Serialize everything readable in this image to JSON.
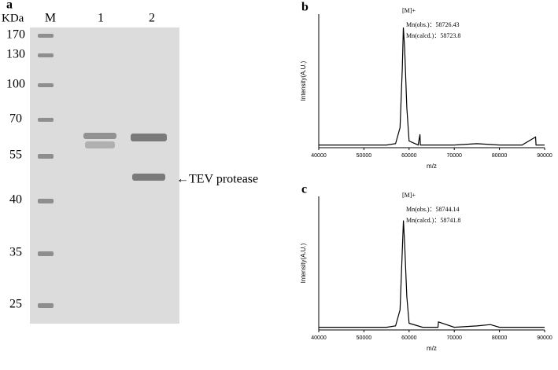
{
  "gel": {
    "panel_label": "a",
    "unit": "KDa",
    "lanes": [
      "M",
      "1",
      "2"
    ],
    "markers": [
      170,
      130,
      100,
      70,
      55,
      40,
      35,
      25
    ],
    "annotation": "←TEV protease"
  },
  "chart_data": [
    {
      "type": "line",
      "panel_label": "b",
      "ylabel": "Intensity(A.U.)",
      "xlabel": "m/z",
      "annotations": [
        "[M]+",
        "Mn(obs.)：58726.43",
        "Mn(calcd.)：58723.8"
      ],
      "x": [
        40000,
        45000,
        50000,
        55000,
        57000,
        58000,
        58500,
        58726,
        59000,
        59500,
        60000,
        62000,
        62400,
        62500,
        65000,
        70000,
        75000,
        80000,
        85000,
        88000,
        88100,
        90000
      ],
      "values": [
        0.02,
        0.02,
        0.02,
        0.02,
        0.03,
        0.15,
        0.6,
        0.9,
        0.75,
        0.3,
        0.05,
        0.02,
        0.1,
        0.02,
        0.02,
        0.02,
        0.03,
        0.02,
        0.02,
        0.08,
        0.02,
        0.02
      ],
      "xlim": [
        40000,
        90000
      ],
      "xticks": [
        40000,
        50000,
        60000,
        70000,
        80000,
        90000
      ],
      "ylim": [
        0,
        1
      ],
      "color": "#000000"
    },
    {
      "type": "line",
      "panel_label": "c",
      "ylabel": "Intensity(A.U.)",
      "xlabel": "m/z",
      "annotations": [
        "[M]+",
        "Mn(obs.)：58744.14",
        "Mn(calcd.)：58741.8"
      ],
      "x": [
        40000,
        45000,
        50000,
        55000,
        57000,
        58000,
        58500,
        58744,
        59000,
        59500,
        60000,
        63000,
        66400,
        66500,
        70000,
        75000,
        78000,
        80000,
        85000,
        90000
      ],
      "values": [
        0.02,
        0.02,
        0.02,
        0.02,
        0.03,
        0.15,
        0.6,
        0.82,
        0.65,
        0.25,
        0.05,
        0.02,
        0.02,
        0.06,
        0.02,
        0.03,
        0.04,
        0.02,
        0.02,
        0.02
      ],
      "xlim": [
        40000,
        90000
      ],
      "xticks": [
        40000,
        50000,
        60000,
        70000,
        80000,
        90000
      ],
      "ylim": [
        0,
        1
      ],
      "color": "#000000"
    }
  ]
}
